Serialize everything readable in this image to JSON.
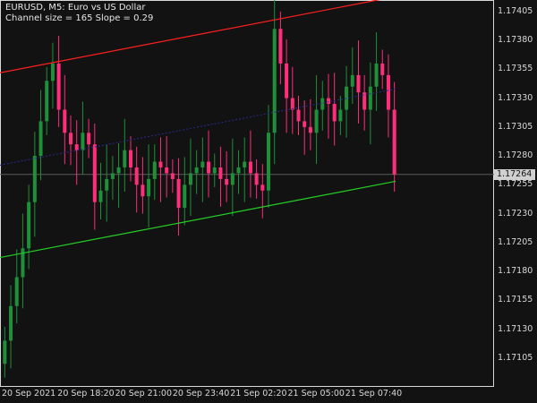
{
  "header": {
    "title": "EURUSD, M5:  Euro vs US Dollar",
    "channel_info": "Channel size = 165 Slope = 0.29"
  },
  "current_price": "1.17264",
  "colors": {
    "background": "#121212",
    "up_candle": "#1f8f3a",
    "down_candle": "#ff2d7a",
    "channel_top": "#ff1f1f",
    "channel_mid": "#2a2a90",
    "channel_bottom": "#25cf25",
    "grid_border": "#d8d8d8"
  },
  "chart_data": {
    "type": "candlestick",
    "symbol": "EURUSD",
    "timeframe": "M5",
    "y_axis_ticks": [
      "1.17405",
      "1.17380",
      "1.17355",
      "1.17330",
      "1.17305",
      "1.17280",
      "1.17255",
      "1.17230",
      "1.17205",
      "1.17180",
      "1.17155",
      "1.17130",
      "1.17105"
    ],
    "x_axis_ticks": [
      "20 Sep 2021",
      "20 Sep 18:20",
      "20 Sep 21:00",
      "20 Sep 23:40",
      "21 Sep 02:20",
      "21 Sep 05:00",
      "21 Sep 07:40"
    ],
    "ylim": [
      1.1708,
      1.17415
    ],
    "close_series": [
      1.1712,
      1.1715,
      1.17175,
      1.172,
      1.1724,
      1.1728,
      1.1731,
      1.17345,
      1.1736,
      1.1732,
      1.173,
      1.1729,
      1.17285,
      1.173,
      1.1729,
      1.1724,
      1.1725,
      1.1726,
      1.17265,
      1.1727,
      1.17285,
      1.1727,
      1.17255,
      1.17245,
      1.1726,
      1.17275,
      1.1727,
      1.17265,
      1.1726,
      1.17235,
      1.17255,
      1.17265,
      1.1727,
      1.17275,
      1.17265,
      1.1727,
      1.1726,
      1.17255,
      1.17265,
      1.1727,
      1.17275,
      1.17265,
      1.17255,
      1.1725,
      1.173,
      1.1739,
      1.1736,
      1.1733,
      1.1732,
      1.1731,
      1.17305,
      1.173,
      1.1732,
      1.1733,
      1.17325,
      1.1731,
      1.1732,
      1.1734,
      1.1735,
      1.17335,
      1.1732,
      1.1734,
      1.1736,
      1.1735,
      1.1732,
      1.17264
    ],
    "channel": {
      "upper_start": 1.17352,
      "upper_end": 1.17418,
      "middle_start": 1.17272,
      "middle_end": 1.17338,
      "lower_start": 1.17192,
      "lower_end": 1.17258
    }
  }
}
